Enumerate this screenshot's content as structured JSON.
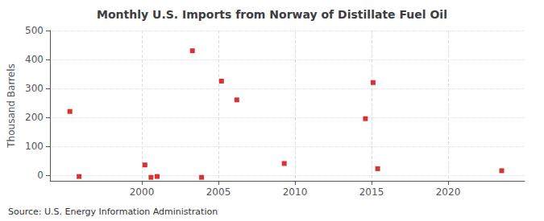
{
  "chart_data": {
    "type": "scatter",
    "title": "Monthly U.S. Imports from Norway of Distillate Fuel Oil",
    "ylabel": "Thousand Barrels",
    "annotations": [
      "Source: U.S. Energy Information Administration"
    ],
    "x": [
      1995.3,
      1995.9,
      2000.2,
      2000.6,
      2001.0,
      2003.3,
      2003.9,
      2005.2,
      2006.2,
      2009.3,
      2014.6,
      2015.1,
      2015.4,
      2023.5
    ],
    "values": [
      220,
      -5,
      35,
      -8,
      -5,
      430,
      -8,
      325,
      260,
      40,
      195,
      320,
      22,
      15
    ],
    "color": "#cc0000",
    "marker": "square",
    "xlim": [
      1994,
      2025
    ],
    "ylim": [
      -20,
      500
    ],
    "xticks": [
      2000,
      2005,
      2010,
      2015,
      2020
    ],
    "yticks": [
      0,
      100,
      200,
      300,
      400,
      500
    ],
    "grid": true
  }
}
